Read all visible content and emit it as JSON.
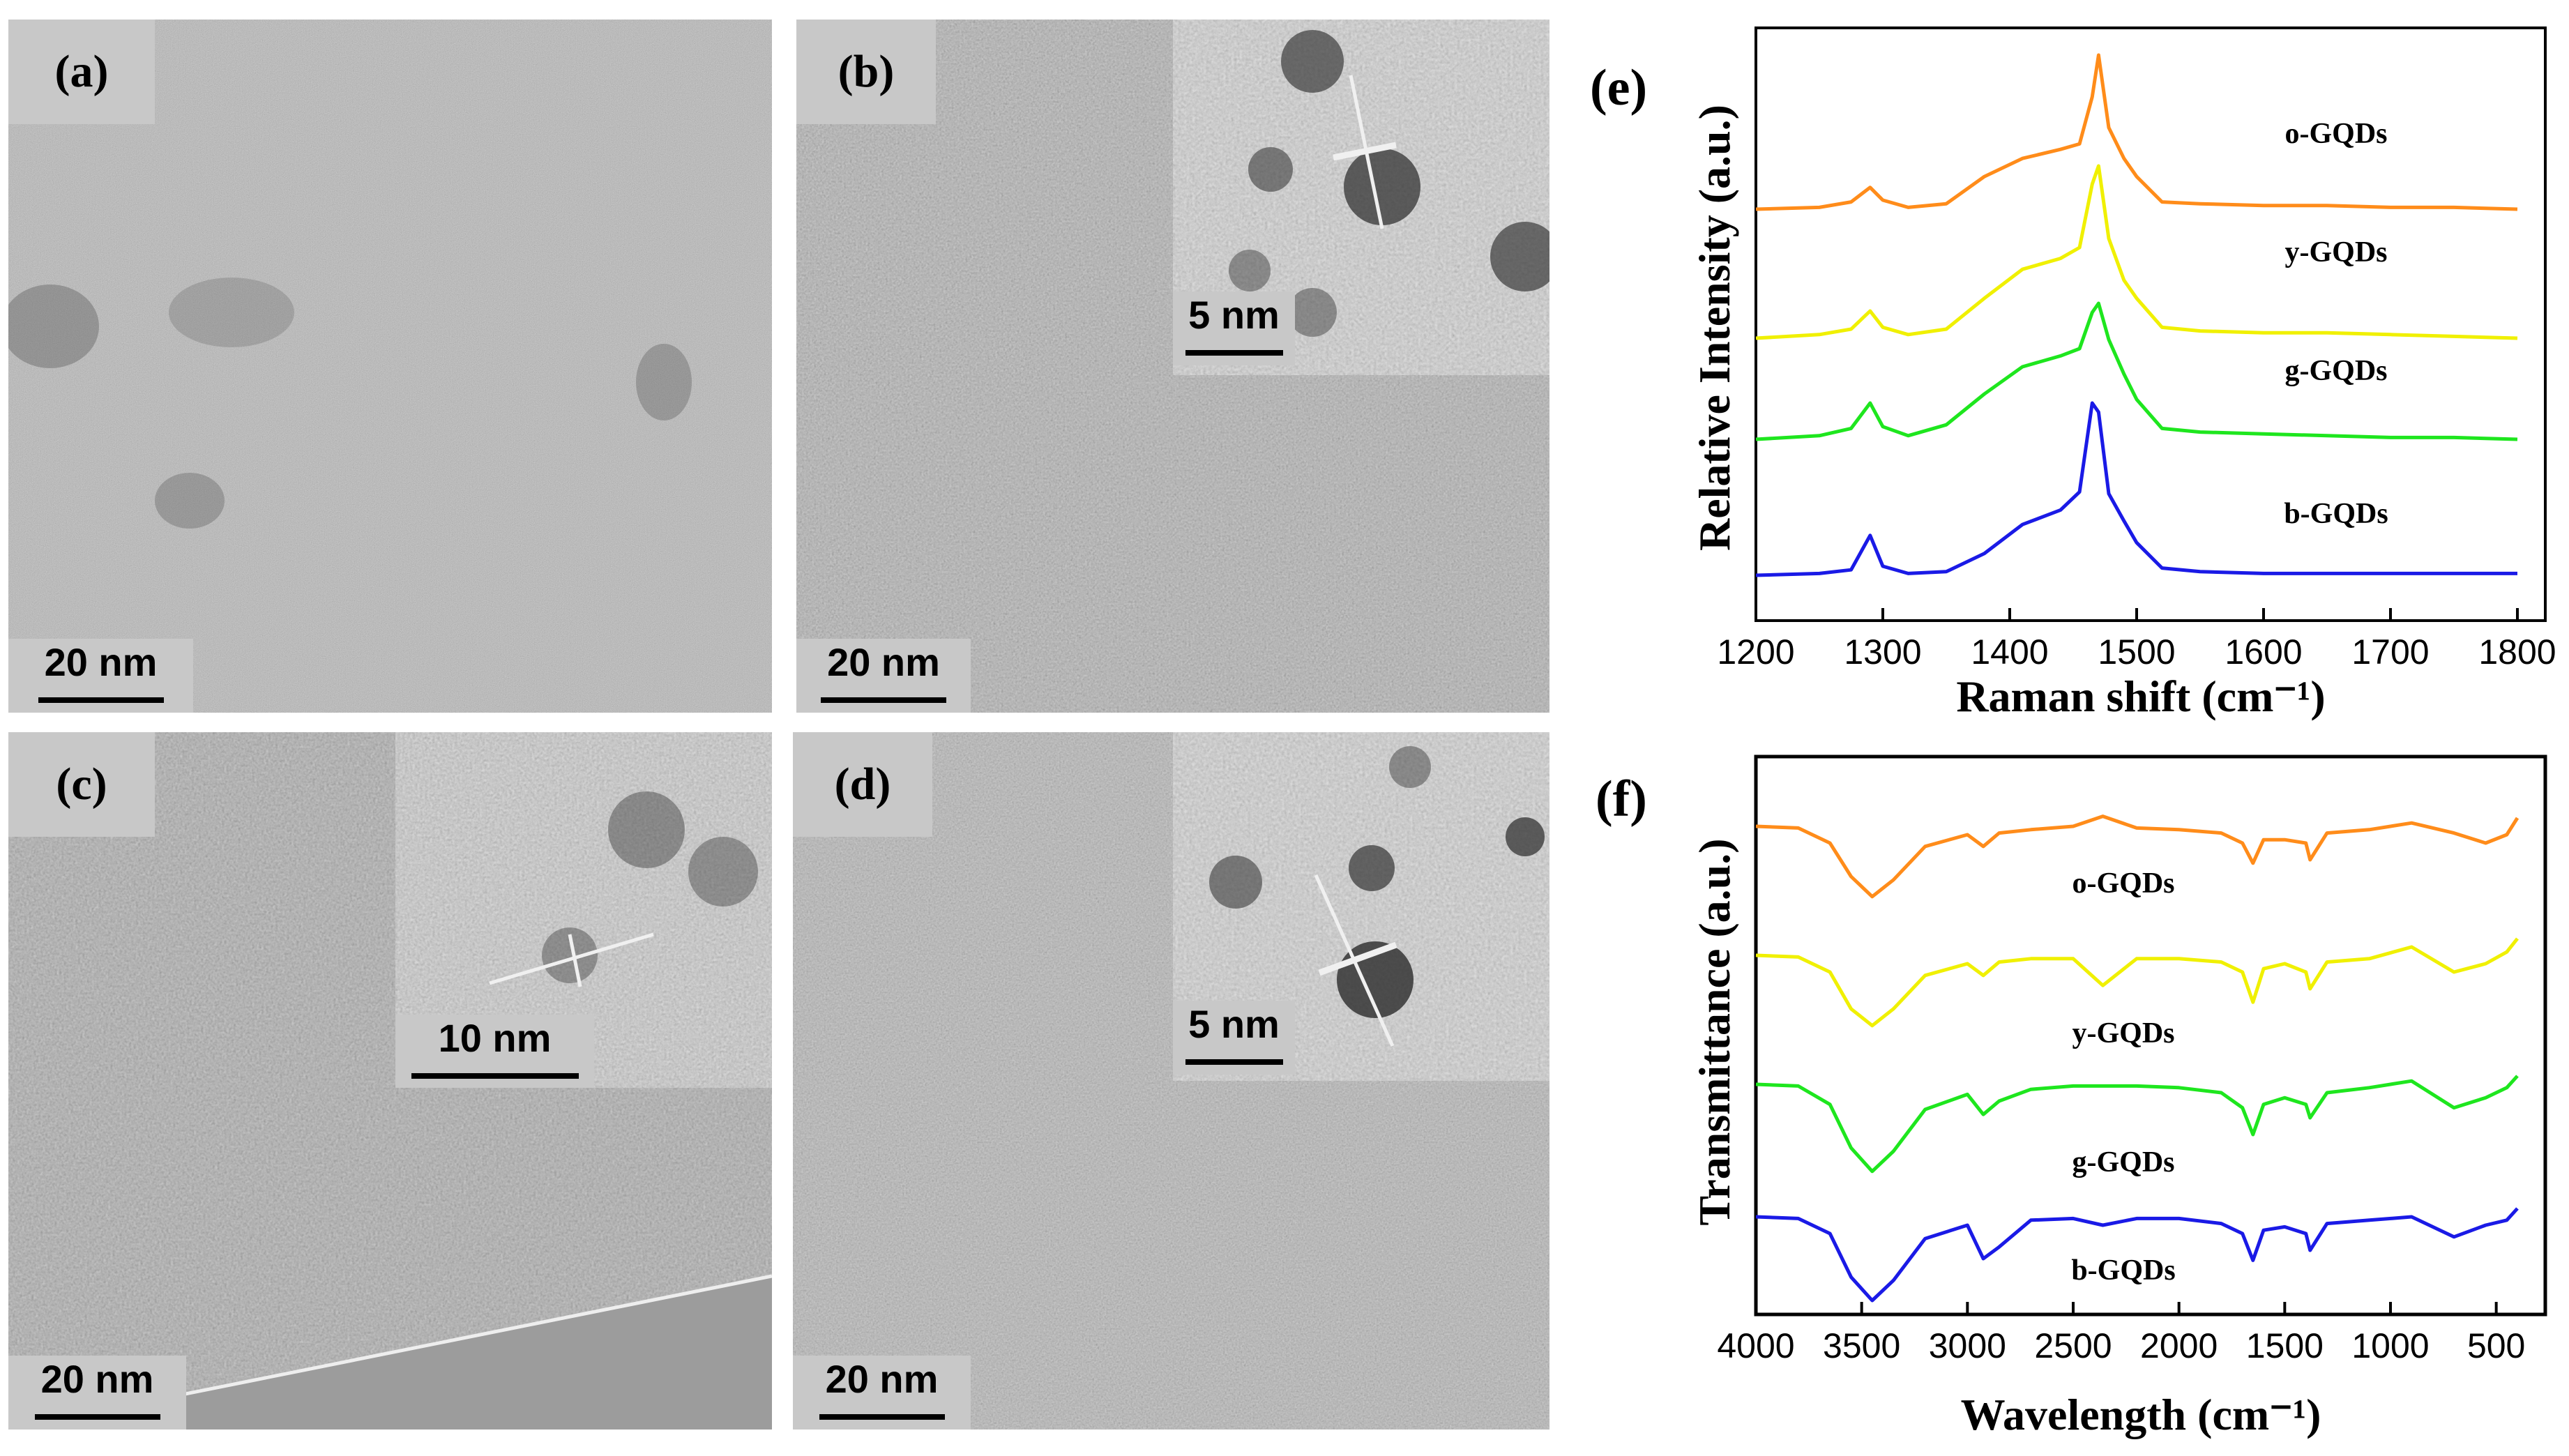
{
  "panels": [
    {
      "label": "(a)",
      "scale": "20 nm"
    },
    {
      "label": "(b)",
      "scale": "20 nm",
      "inset_scale": "5 nm"
    },
    {
      "label": "(c)",
      "scale": "20 nm",
      "inset_scale": "10 nm"
    },
    {
      "label": "(d)",
      "scale": "20 nm",
      "inset_scale": "5 nm"
    }
  ],
  "chart_data": [
    {
      "type": "line",
      "panel_label": "(e)",
      "xlabel": "Raman shift (cm⁻¹)",
      "ylabel": "Relative Intensity (a.u.)",
      "xlim": [
        1200,
        1800
      ],
      "xticks": [
        1200,
        1300,
        1400,
        1500,
        1600,
        1700,
        1800
      ],
      "y_ticks_shown": false,
      "legend": "inline labels",
      "series": [
        {
          "name": "o-GQDs",
          "color": "#ff8c1a",
          "x": [
            1200,
            1250,
            1275,
            1290,
            1300,
            1320,
            1350,
            1380,
            1410,
            1440,
            1455,
            1465,
            1470,
            1478,
            1490,
            1500,
            1520,
            1550,
            1600,
            1650,
            1700,
            1750,
            1800
          ],
          "y": [
            0.0,
            0.01,
            0.04,
            0.12,
            0.05,
            0.01,
            0.03,
            0.18,
            0.28,
            0.33,
            0.36,
            0.62,
            0.85,
            0.45,
            0.28,
            0.18,
            0.04,
            0.03,
            0.02,
            0.02,
            0.01,
            0.01,
            0.0
          ]
        },
        {
          "name": "y-GQDs",
          "color": "#f0f000",
          "x": [
            1200,
            1250,
            1275,
            1290,
            1300,
            1320,
            1350,
            1380,
            1410,
            1440,
            1455,
            1465,
            1470,
            1478,
            1490,
            1500,
            1520,
            1550,
            1600,
            1650,
            1700,
            1750,
            1800
          ],
          "y": [
            0.0,
            0.02,
            0.05,
            0.15,
            0.06,
            0.02,
            0.05,
            0.22,
            0.38,
            0.44,
            0.5,
            0.85,
            0.95,
            0.55,
            0.32,
            0.22,
            0.06,
            0.04,
            0.03,
            0.03,
            0.02,
            0.01,
            0.0
          ]
        },
        {
          "name": "g-GQDs",
          "color": "#1ee61e",
          "x": [
            1200,
            1250,
            1275,
            1290,
            1300,
            1320,
            1350,
            1380,
            1410,
            1440,
            1455,
            1465,
            1470,
            1478,
            1490,
            1500,
            1520,
            1550,
            1600,
            1650,
            1700,
            1750,
            1800
          ],
          "y": [
            0.0,
            0.02,
            0.06,
            0.2,
            0.07,
            0.02,
            0.08,
            0.25,
            0.4,
            0.46,
            0.5,
            0.7,
            0.75,
            0.55,
            0.36,
            0.22,
            0.06,
            0.04,
            0.03,
            0.02,
            0.01,
            0.01,
            0.0
          ]
        },
        {
          "name": "b-GQDs",
          "color": "#1a1ae6",
          "x": [
            1200,
            1250,
            1275,
            1290,
            1300,
            1320,
            1350,
            1380,
            1410,
            1440,
            1455,
            1465,
            1470,
            1478,
            1490,
            1500,
            1520,
            1550,
            1600,
            1650,
            1700,
            1750,
            1800
          ],
          "y": [
            0.0,
            0.01,
            0.03,
            0.22,
            0.05,
            0.01,
            0.02,
            0.12,
            0.28,
            0.36,
            0.46,
            0.95,
            0.9,
            0.45,
            0.3,
            0.18,
            0.04,
            0.02,
            0.01,
            0.01,
            0.01,
            0.01,
            0.01
          ]
        }
      ]
    },
    {
      "type": "line",
      "panel_label": "(f)",
      "xlabel": "Wavelength (cm⁻¹)",
      "ylabel": "Transmittance (a.u.)",
      "xlim": [
        4000,
        400
      ],
      "xticks": [
        4000,
        3500,
        3000,
        2500,
        2000,
        1500,
        1000,
        500
      ],
      "y_ticks_shown": false,
      "legend": "inline labels",
      "series": [
        {
          "name": "o-GQDs",
          "color": "#ff8c1a",
          "x": [
            4000,
            3800,
            3650,
            3550,
            3450,
            3350,
            3200,
            3000,
            2925,
            2850,
            2700,
            2500,
            2360,
            2200,
            2000,
            1800,
            1700,
            1650,
            1600,
            1500,
            1400,
            1380,
            1300,
            1100,
            900,
            700,
            550,
            450,
            400
          ],
          "y": [
            0.0,
            -0.01,
            -0.1,
            -0.3,
            -0.42,
            -0.32,
            -0.12,
            -0.05,
            -0.12,
            -0.04,
            -0.02,
            0.0,
            0.06,
            -0.01,
            -0.02,
            -0.04,
            -0.1,
            -0.22,
            -0.08,
            -0.08,
            -0.1,
            -0.2,
            -0.04,
            -0.02,
            0.02,
            -0.04,
            -0.1,
            -0.05,
            0.05
          ]
        },
        {
          "name": "y-GQDs",
          "color": "#f0f000",
          "x": [
            4000,
            3800,
            3650,
            3550,
            3450,
            3350,
            3200,
            3000,
            2925,
            2850,
            2700,
            2500,
            2360,
            2200,
            2000,
            1800,
            1700,
            1650,
            1600,
            1500,
            1400,
            1380,
            1300,
            1100,
            900,
            700,
            550,
            450,
            400
          ],
          "y": [
            0.0,
            -0.01,
            -0.1,
            -0.32,
            -0.42,
            -0.32,
            -0.12,
            -0.05,
            -0.12,
            -0.04,
            -0.02,
            -0.02,
            -0.18,
            -0.02,
            -0.02,
            -0.04,
            -0.1,
            -0.28,
            -0.08,
            -0.05,
            -0.1,
            -0.2,
            -0.04,
            -0.02,
            0.05,
            -0.1,
            -0.05,
            0.02,
            0.1
          ]
        },
        {
          "name": "g-GQDs",
          "color": "#1ee61e",
          "x": [
            4000,
            3800,
            3650,
            3550,
            3450,
            3350,
            3200,
            3000,
            2925,
            2850,
            2700,
            2500,
            2360,
            2200,
            2000,
            1800,
            1700,
            1650,
            1600,
            1500,
            1400,
            1380,
            1300,
            1100,
            900,
            700,
            550,
            450,
            400
          ],
          "y": [
            0.0,
            -0.01,
            -0.12,
            -0.38,
            -0.52,
            -0.4,
            -0.15,
            -0.06,
            -0.18,
            -0.1,
            -0.03,
            -0.01,
            -0.01,
            -0.01,
            -0.02,
            -0.05,
            -0.14,
            -0.3,
            -0.12,
            -0.08,
            -0.12,
            -0.2,
            -0.05,
            -0.02,
            0.02,
            -0.14,
            -0.08,
            -0.02,
            0.05
          ]
        },
        {
          "name": "b-GQDs",
          "color": "#1a1ae6",
          "x": [
            4000,
            3800,
            3650,
            3550,
            3450,
            3350,
            3200,
            3000,
            2925,
            2850,
            2700,
            2500,
            2360,
            2200,
            2000,
            1800,
            1700,
            1650,
            1600,
            1500,
            1400,
            1380,
            1300,
            1100,
            900,
            700,
            550,
            450,
            400
          ],
          "y": [
            0.0,
            -0.01,
            -0.1,
            -0.36,
            -0.5,
            -0.38,
            -0.13,
            -0.05,
            -0.25,
            -0.18,
            -0.02,
            -0.01,
            -0.05,
            -0.01,
            -0.01,
            -0.04,
            -0.1,
            -0.26,
            -0.08,
            -0.06,
            -0.1,
            -0.2,
            -0.04,
            -0.02,
            0.0,
            -0.12,
            -0.05,
            -0.02,
            0.05
          ]
        }
      ]
    }
  ]
}
